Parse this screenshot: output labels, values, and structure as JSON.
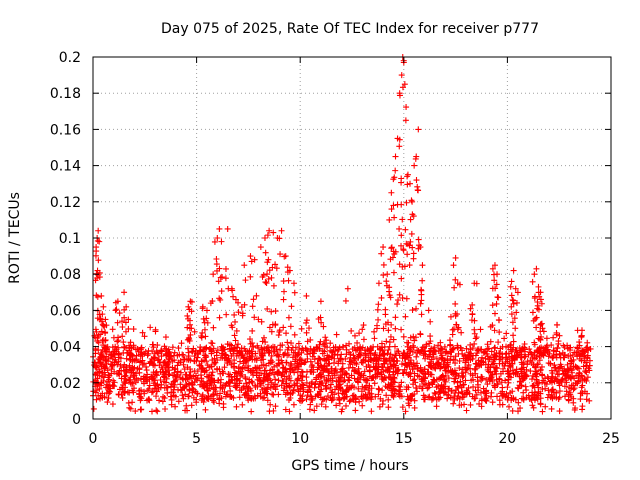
{
  "chart_data": {
    "type": "scatter",
    "title": "Day 075 of 2025, Rate Of TEC Index for receiver p777",
    "xlabel": "GPS time / hours",
    "ylabel": "ROTI / TECUs",
    "xlim": [
      0,
      25
    ],
    "ylim": [
      0,
      0.2
    ],
    "x_ticks": [
      "0",
      "5",
      "10",
      "15",
      "20",
      "25"
    ],
    "y_ticks": [
      "0",
      "0.02",
      "0.04",
      "0.06",
      "0.08",
      "0.1",
      "0.12",
      "0.14",
      "0.16",
      "0.18",
      "0.2"
    ],
    "grid": true,
    "marker": "+",
    "color": "#ff0000",
    "data_extent_x": [
      0,
      24
    ],
    "baseline_band": [
      0.01,
      0.04
    ],
    "series": [
      {
        "points": [
          [
            0.15,
            0.095
          ],
          [
            0.2,
            0.1
          ],
          [
            0.25,
            0.104
          ],
          [
            0.3,
            0.098
          ],
          [
            0.22,
            0.082
          ],
          [
            0.4,
            0.068
          ],
          [
            0.5,
            0.062
          ],
          [
            0.6,
            0.055
          ],
          [
            1.2,
            0.065
          ],
          [
            1.5,
            0.07
          ],
          [
            1.6,
            0.062
          ],
          [
            4.6,
            0.062
          ],
          [
            4.7,
            0.065
          ],
          [
            5.3,
            0.062
          ],
          [
            5.5,
            0.06
          ],
          [
            5.8,
            0.08
          ],
          [
            6.0,
            0.1
          ],
          [
            6.1,
            0.105
          ],
          [
            6.2,
            0.098
          ],
          [
            6.5,
            0.105
          ],
          [
            6.7,
            0.072
          ],
          [
            6.9,
            0.066
          ],
          [
            7.3,
            0.085
          ],
          [
            7.6,
            0.09
          ],
          [
            7.8,
            0.088
          ],
          [
            8.1,
            0.095
          ],
          [
            8.3,
            0.1
          ],
          [
            8.5,
            0.104
          ],
          [
            8.7,
            0.103
          ],
          [
            8.9,
            0.1
          ],
          [
            9.1,
            0.104
          ],
          [
            9.3,
            0.09
          ],
          [
            9.5,
            0.082
          ],
          [
            9.7,
            0.075
          ],
          [
            10.3,
            0.068
          ],
          [
            11.0,
            0.065
          ],
          [
            12.3,
            0.072
          ],
          [
            13.8,
            0.075
          ],
          [
            14.0,
            0.095
          ],
          [
            14.2,
            0.08
          ],
          [
            14.3,
            0.11
          ],
          [
            14.4,
            0.125
          ],
          [
            14.5,
            0.118
          ],
          [
            14.6,
            0.145
          ],
          [
            14.7,
            0.155
          ],
          [
            14.8,
            0.18
          ],
          [
            14.9,
            0.19
          ],
          [
            14.95,
            0.2
          ],
          [
            15.0,
            0.197
          ],
          [
            15.05,
            0.185
          ],
          [
            15.1,
            0.165
          ],
          [
            15.2,
            0.135
          ],
          [
            15.3,
            0.13
          ],
          [
            15.4,
            0.12
          ],
          [
            15.5,
            0.14
          ],
          [
            15.6,
            0.145
          ],
          [
            15.7,
            0.16
          ],
          [
            15.8,
            0.095
          ],
          [
            15.9,
            0.085
          ],
          [
            16.2,
            0.06
          ],
          [
            17.4,
            0.085
          ],
          [
            17.5,
            0.089
          ],
          [
            17.6,
            0.075
          ],
          [
            18.3,
            0.063
          ],
          [
            18.4,
            0.075
          ],
          [
            19.3,
            0.083
          ],
          [
            19.4,
            0.085
          ],
          [
            19.5,
            0.08
          ],
          [
            20.2,
            0.076
          ],
          [
            20.3,
            0.082
          ],
          [
            20.4,
            0.072
          ],
          [
            21.3,
            0.08
          ],
          [
            21.4,
            0.083
          ],
          [
            21.5,
            0.073
          ],
          [
            21.6,
            0.07
          ],
          [
            22.4,
            0.052
          ],
          [
            23.6,
            0.049
          ],
          [
            23.9,
            0.038
          ]
        ]
      }
    ]
  }
}
